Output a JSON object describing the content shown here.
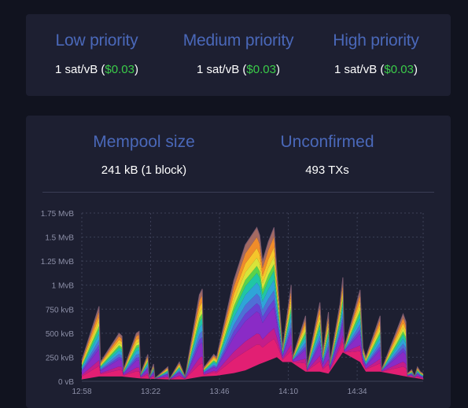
{
  "fees": [
    {
      "title": "Low priority",
      "rate": "1 sat/vB",
      "fiat": "$0.03"
    },
    {
      "title": "Medium priority",
      "rate": "1 sat/vB",
      "fiat": "$0.03"
    },
    {
      "title": "High priority",
      "rate": "1 sat/vB",
      "fiat": "$0.03"
    }
  ],
  "stats": {
    "mempool_size_title": "Mempool size",
    "mempool_size_value": "241 kB (1 block)",
    "unconfirmed_title": "Unconfirmed",
    "unconfirmed_value": "493 TXs"
  },
  "colors": {
    "accent": "#4a68b9",
    "fiat": "#3bcc49",
    "card": "#1d1f31",
    "background": "#11131f"
  },
  "chart_data": {
    "type": "area",
    "stacked": true,
    "grid": true,
    "ylim": [
      0,
      1.75
    ],
    "y_unit": "MvB",
    "y_ticks": [
      "0 vB",
      "250 kvB",
      "500 kvB",
      "750 kvB",
      "1 MvB",
      "1.25 MvB",
      "1.5 MvB",
      "1.75 MvB"
    ],
    "y_tick_values": [
      0,
      0.25,
      0.5,
      0.75,
      1.0,
      1.25,
      1.5,
      1.75
    ],
    "x_ticks": [
      "12:58",
      "13:22",
      "13:46",
      "14:10",
      "14:34"
    ],
    "x_tick_minutes": [
      0,
      24,
      48,
      72,
      96
    ],
    "x_range_minutes": [
      0,
      119
    ],
    "totals": [
      [
        0,
        0.22
      ],
      [
        6,
        0.78
      ],
      [
        6.5,
        0.2
      ],
      [
        13,
        0.5
      ],
      [
        14,
        0.47
      ],
      [
        14.5,
        0.12
      ],
      [
        19,
        0.5
      ],
      [
        20,
        0.52
      ],
      [
        20.5,
        0.08
      ],
      [
        23,
        0.28
      ],
      [
        23.5,
        0.04
      ],
      [
        25,
        0.18
      ],
      [
        25.5,
        0.03
      ],
      [
        30,
        0.15
      ],
      [
        30.5,
        0.02
      ],
      [
        34,
        0.2
      ],
      [
        36,
        0.05
      ],
      [
        41,
        0.9
      ],
      [
        42,
        0.96
      ],
      [
        42.5,
        0.14
      ],
      [
        46,
        0.28
      ],
      [
        47,
        0.25
      ],
      [
        53,
        1.05
      ],
      [
        57,
        1.42
      ],
      [
        61,
        1.6
      ],
      [
        62,
        1.52
      ],
      [
        63,
        1.25
      ],
      [
        65,
        1.45
      ],
      [
        67,
        1.6
      ],
      [
        68,
        1.15
      ],
      [
        70,
        0.35
      ],
      [
        73,
        1.0
      ],
      [
        73.5,
        0.25
      ],
      [
        78,
        0.68
      ],
      [
        78.5,
        0.15
      ],
      [
        83,
        0.82
      ],
      [
        84,
        0.3
      ],
      [
        86,
        0.72
      ],
      [
        86.5,
        0.2
      ],
      [
        90,
        0.8
      ],
      [
        91,
        1.08
      ],
      [
        91.5,
        0.35
      ],
      [
        97,
        0.95
      ],
      [
        98,
        0.35
      ],
      [
        99,
        0.25
      ],
      [
        104,
        0.68
      ],
      [
        104.5,
        0.12
      ],
      [
        112,
        0.7
      ],
      [
        113,
        0.62
      ],
      [
        113.5,
        0.08
      ],
      [
        115,
        0.12
      ],
      [
        116,
        0.05
      ],
      [
        117,
        0.15
      ],
      [
        118,
        0.1
      ],
      [
        119,
        0.08
      ]
    ],
    "band_fractions": [
      0.15,
      0.08,
      0.16,
      0.06,
      0.07,
      0.08,
      0.07,
      0.05,
      0.06,
      0.07,
      0.08,
      0.07
    ],
    "band_colors": [
      "#e21f73",
      "#c41d8a",
      "#8a2bc6",
      "#6a3fd2",
      "#4f6fd6",
      "#2fa4d8",
      "#20c6a5",
      "#58d34c",
      "#d8e43a",
      "#f5c62b",
      "#f08c2a",
      "#a46a62"
    ],
    "base_layer": [
      [
        0,
        0.02
      ],
      [
        6,
        0.05
      ],
      [
        14,
        0.05
      ],
      [
        20,
        0.03
      ],
      [
        30,
        0.02
      ],
      [
        36,
        0.02
      ],
      [
        42,
        0.05
      ],
      [
        48,
        0.06
      ],
      [
        56,
        0.1
      ],
      [
        62,
        0.18
      ],
      [
        68,
        0.25
      ],
      [
        70,
        0.2
      ],
      [
        73,
        0.2
      ],
      [
        78,
        0.1
      ],
      [
        83,
        0.1
      ],
      [
        86,
        0.08
      ],
      [
        91,
        0.3
      ],
      [
        97,
        0.2
      ],
      [
        99,
        0.1
      ],
      [
        104,
        0.1
      ],
      [
        113,
        0.05
      ],
      [
        119,
        0.02
      ]
    ]
  }
}
